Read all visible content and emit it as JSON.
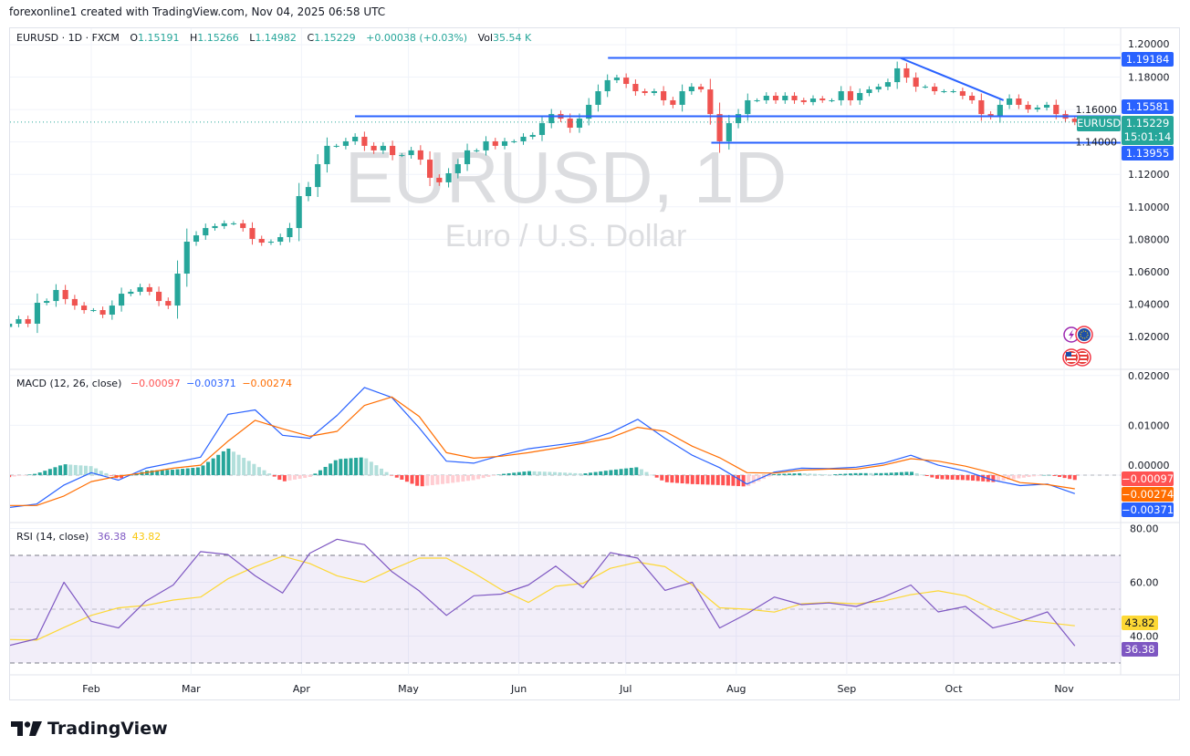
{
  "credit": "forexonline1 created with TradingView.com, Nov 04, 2025 06:58 UTC",
  "symbol_line": {
    "symbol": "EURUSD · 1D · FXCM",
    "open_label": "O",
    "open": "1.15191",
    "high_label": "H",
    "high": "1.15266",
    "low_label": "L",
    "low": "1.14982",
    "close_label": "C",
    "close": "1.15229",
    "change": "+0.00038 (+0.03%)",
    "volume_label": "Vol",
    "volume": "35.54 K"
  },
  "watermark": {
    "title": "EURUSD, 1D",
    "subtitle": "Euro / U.S. Dollar"
  },
  "badges": {
    "resistance": "1.19184",
    "mid_level": "1.15581",
    "last_price": "1.15229",
    "countdown": "15:01:14",
    "symbol_tag": "EURUSD",
    "support": "1.13955",
    "macd_hist": "−0.00097",
    "macd_signal": "−0.00274",
    "macd_line": "−0.00371",
    "rsi_ma": "43.82",
    "rsi": "36.38"
  },
  "macd_legend": {
    "title": "MACD (12, 26, close)",
    "hist": "−0.00097",
    "macd": "−0.00371",
    "signal": "−0.00274"
  },
  "rsi_legend": {
    "title": "RSI (14, close)",
    "rsi": "36.38",
    "ma": "43.82"
  },
  "icons": [
    "lightning-event-icon",
    "eu-flag-icon",
    "us-flag-icon",
    "us-flag-icon"
  ],
  "footer": {
    "brand": "TradingView"
  },
  "colors": {
    "up": "#26a69a",
    "down": "#ef5350",
    "drawing": "#2962ff",
    "macd": "#2962ff",
    "signal": "#ff6d00",
    "rsi": "#7e57c2",
    "rsi_ma": "#fdd835",
    "hist_up_strong": "#26a69a",
    "hist_up_weak": "#b2dfdb",
    "hist_down_strong": "#ff5252",
    "hist_down_weak": "#ffcdd2"
  },
  "chart_data": [
    {
      "type": "candlestick",
      "title": "EURUSD, 1D",
      "first_date": "2025-01-09",
      "last_date": "2025-11-04",
      "closes": [
        1.0279,
        1.0307,
        1.0279,
        1.0408,
        1.0419,
        1.0487,
        1.0431,
        1.0391,
        1.0363,
        1.0363,
        1.0335,
        1.0391,
        1.0464,
        1.0476,
        1.0504,
        1.0476,
        1.0419,
        1.0391,
        1.0588,
        1.0785,
        1.0824,
        1.0869,
        1.0881,
        1.0898,
        1.0898,
        1.0869,
        1.0802,
        1.0779,
        1.0785,
        1.0813,
        1.0869,
        1.1066,
        1.1122,
        1.1263,
        1.1376,
        1.1376,
        1.1404,
        1.1432,
        1.1376,
        1.1348,
        1.1376,
        1.1319,
        1.1319,
        1.1348,
        1.1291,
        1.1179,
        1.1151,
        1.1207,
        1.1263,
        1.1348,
        1.1348,
        1.1404,
        1.1376,
        1.1404,
        1.1404,
        1.1432,
        1.1443,
        1.1516,
        1.1572,
        1.1544,
        1.1488,
        1.1544,
        1.1629,
        1.1713,
        1.1781,
        1.1797,
        1.1758,
        1.1713,
        1.1702,
        1.1713,
        1.1657,
        1.1629,
        1.1713,
        1.1741,
        1.1724,
        1.1572,
        1.1404,
        1.1516,
        1.1572,
        1.1657,
        1.1657,
        1.1685,
        1.1657,
        1.1685,
        1.1657,
        1.1646,
        1.1668,
        1.1657,
        1.1657,
        1.1713,
        1.1657,
        1.1702,
        1.1724,
        1.1741,
        1.1769,
        1.1854,
        1.1797,
        1.1741,
        1.1741,
        1.1713,
        1.1713,
        1.1713,
        1.1685,
        1.1657,
        1.1572,
        1.1556,
        1.1629,
        1.1668,
        1.1629,
        1.1601,
        1.1612,
        1.1629,
        1.1572,
        1.1544,
        1.1523
      ],
      "last_price": 1.15229,
      "ylim": [
        1.0,
        1.2
      ],
      "yticks": [
        "1.20000",
        "1.18000",
        "1.16000",
        "1.14000",
        "1.12000",
        "1.10000",
        "1.08000",
        "1.06000",
        "1.04000",
        "1.02000"
      ],
      "ytick_values": [
        1.2,
        1.18,
        1.16,
        1.14,
        1.12,
        1.1,
        1.08,
        1.06,
        1.04,
        1.02
      ],
      "xticks": [
        {
          "label": "Feb",
          "date": "2025-02-01"
        },
        {
          "label": "Mar",
          "date": "2025-03-01"
        },
        {
          "label": "Apr",
          "date": "2025-04-01"
        },
        {
          "label": "May",
          "date": "2025-05-01"
        },
        {
          "label": "Jun",
          "date": "2025-06-01"
        },
        {
          "label": "Jul",
          "date": "2025-07-01"
        },
        {
          "label": "Aug",
          "date": "2025-08-01"
        },
        {
          "label": "Sep",
          "date": "2025-09-01"
        },
        {
          "label": "Oct",
          "date": "2025-10-01"
        },
        {
          "label": "Nov",
          "date": "2025-11-01"
        }
      ],
      "drawings": [
        {
          "kind": "horizontal-ray",
          "price": 1.19184,
          "from": "2025-06-26"
        },
        {
          "kind": "horizontal-ray",
          "price": 1.15581,
          "from": "2025-04-16"
        },
        {
          "kind": "horizontal-ray",
          "price": 1.13955,
          "from": "2025-07-25"
        },
        {
          "kind": "trendline",
          "from": {
            "date": "2025-09-16",
            "price": 1.19184
          },
          "to": {
            "date": "2025-10-15",
            "price": 1.1657
          }
        }
      ],
      "grid": true
    },
    {
      "type": "line",
      "title": "MACD (12, 26, close)",
      "first_date": "2025-01-09",
      "last_date": "2025-11-04",
      "series": [
        {
          "name": "MACD",
          "values": [
            -0.0065,
            -0.0058,
            -0.002,
            0.0005,
            -0.001,
            0.0014,
            0.0025,
            0.0036,
            0.0122,
            0.0131,
            0.008,
            0.0074,
            0.012,
            0.0176,
            0.0156,
            0.0095,
            0.0028,
            0.0024,
            0.004,
            0.0053,
            0.006,
            0.0067,
            0.0085,
            0.0112,
            0.0074,
            0.004,
            0.0015,
            -0.0018,
            0.0006,
            0.0014,
            0.0013,
            0.0016,
            0.0024,
            0.004,
            0.002,
            0.0008,
            -0.001,
            -0.0021,
            -0.0018,
            -0.00371
          ]
        },
        {
          "name": "Signal",
          "values": [
            -0.0061,
            -0.0061,
            -0.0042,
            -0.0013,
            -0.0002,
            0.0005,
            0.0014,
            0.002,
            0.0068,
            0.011,
            0.0093,
            0.0078,
            0.0088,
            0.014,
            0.0157,
            0.0118,
            0.0045,
            0.0034,
            0.0038,
            0.0045,
            0.0054,
            0.0064,
            0.0075,
            0.0096,
            0.0088,
            0.0058,
            0.0035,
            0.0005,
            0.0004,
            0.001,
            0.0012,
            0.0012,
            0.002,
            0.0033,
            0.0028,
            0.0018,
            0.0004,
            -0.0015,
            -0.0019,
            -0.00274
          ]
        }
      ],
      "histogram": "MACD - Signal",
      "yticks": [
        "0.02000",
        "0.01000",
        "0.00000"
      ],
      "ytick_values": [
        0.02,
        0.01,
        0.0
      ]
    },
    {
      "type": "line",
      "title": "RSI (14, close)",
      "first_date": "2025-01-09",
      "last_date": "2025-11-04",
      "series": [
        {
          "name": "RSI",
          "values": [
            36.5,
            39,
            60,
            45.5,
            43,
            53,
            59,
            71.4,
            70.3,
            62.4,
            56,
            70.8,
            76,
            74,
            64,
            56.8,
            47.7,
            55,
            55.6,
            59,
            66,
            58,
            71,
            69,
            57,
            60,
            43,
            48.3,
            54.5,
            51.7,
            52.3,
            51,
            54.5,
            59,
            49,
            51,
            43,
            45.5,
            49,
            36.38
          ]
        },
        {
          "name": "RSI-based MA",
          "values": [
            38.7,
            38.5,
            43.2,
            47.7,
            50.5,
            51.4,
            53.4,
            54.5,
            61.3,
            65.8,
            69.7,
            67,
            62.4,
            60,
            64.7,
            69,
            69,
            63.5,
            57.3,
            52.5,
            58.5,
            59.6,
            65.2,
            67.5,
            65.8,
            59,
            50.5,
            50,
            48.9,
            52,
            52.5,
            52,
            53,
            55.4,
            56.8,
            55,
            50,
            46,
            45,
            43.82
          ]
        }
      ],
      "bands": {
        "upper": 70,
        "middle": 50,
        "lower": 30
      },
      "yticks": [
        "80.00",
        "60.00",
        "40.00"
      ],
      "ytick_values": [
        80,
        60,
        40
      ]
    }
  ]
}
